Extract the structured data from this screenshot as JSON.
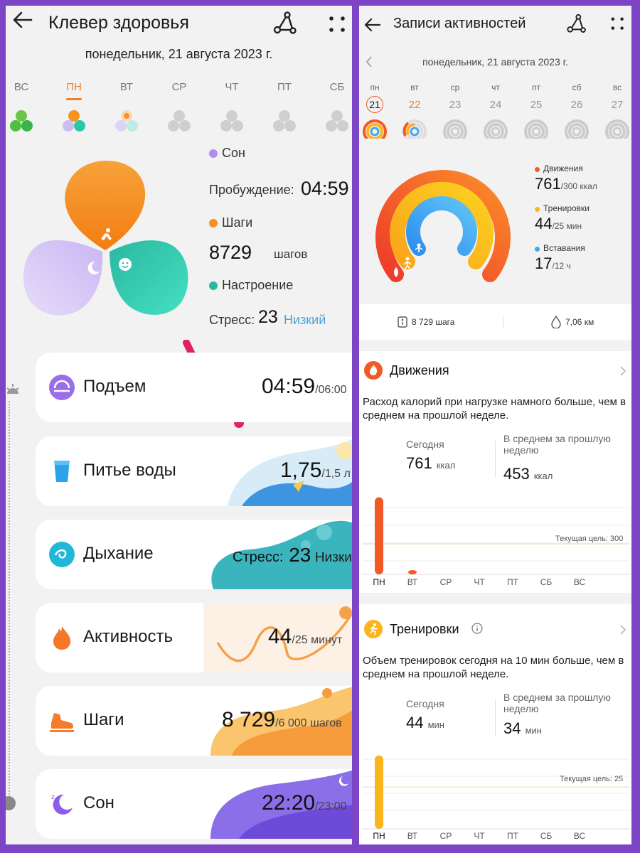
{
  "left": {
    "title": "Клевер здоровья",
    "date": "понедельник, 21 августа 2023 г.",
    "days": [
      "ВС",
      "ПН",
      "ВТ",
      "СР",
      "ЧТ",
      "ПТ",
      "СБ"
    ],
    "legend": {
      "sleep_label": "Сон",
      "wake_label": "Пробуждение:",
      "wake_value": "04:59",
      "steps_label": "Шаги",
      "steps_value": "8729",
      "steps_unit": "шагов",
      "mood_label": "Настроение",
      "stress_label": "Стресс:",
      "stress_value": "23",
      "stress_level": "Низкий"
    },
    "cards": [
      {
        "label": "Подъем",
        "value": "04:59",
        "unit": "/06:00",
        "icon": "sunrise-icon"
      },
      {
        "label": "Питье воды",
        "value": "1,75",
        "unit": "/1,5 л",
        "icon": "water-glass-icon"
      },
      {
        "label": "Дыхание",
        "prefix": "Стресс:",
        "value": "23",
        "unit": "Низкий",
        "icon": "breathing-icon"
      },
      {
        "label": "Активность",
        "value": "44",
        "unit": "/25 минут",
        "icon": "flame-icon"
      },
      {
        "label": "Шаги",
        "value": "8 729",
        "unit": "/6 000 шагов",
        "icon": "shoe-icon"
      },
      {
        "label": "Сон",
        "value": "22:20",
        "unit": "/23:00",
        "icon": "moon-icon"
      }
    ],
    "colors": {
      "orange": "#f6921e",
      "green": "#2bc7a8",
      "purple": "#cdbdf2",
      "accent": "#f08024",
      "link": "#4ba4d8"
    }
  },
  "right": {
    "title": "Записи активностей",
    "date": "понедельник, 21 августа 2023 г.",
    "weekdays": [
      "пн",
      "вт",
      "ср",
      "чт",
      "пт",
      "сб",
      "вс"
    ],
    "daynums": [
      "21",
      "22",
      "23",
      "24",
      "25",
      "26",
      "27"
    ],
    "rings": [
      {
        "label": "Движения",
        "value": "761",
        "goal": "/300 ккал",
        "color": "#f15a24"
      },
      {
        "label": "Тренировки",
        "value": "44",
        "goal": "/25 мин",
        "color": "#fbb41c"
      },
      {
        "label": "Вставания",
        "value": "17",
        "goal": "/12 ч",
        "color": "#3fa7f0"
      }
    ],
    "steps": "8 729 шага",
    "distance": "7,06 км",
    "moves": {
      "title": "Движения",
      "desc": "Расход калорий при нагрузке намного больше, чем в среднем на прошлой неделе.",
      "today_label": "Сегодня",
      "today_value": "761",
      "today_unit": "ккал",
      "avg_label": "В среднем за прошлую неделю",
      "avg_value": "453",
      "avg_unit": "ккал",
      "goal_label": "Текущая цель: 300"
    },
    "workouts": {
      "title": "Тренировки",
      "desc": "Объем тренировок сегодня на 10 мин больше, чем в среднем на прошлой неделе.",
      "today_label": "Сегодня",
      "today_value": "44",
      "today_unit": "мин",
      "avg_label": "В среднем за прошлую неделю",
      "avg_value": "34",
      "avg_unit": "мин",
      "goal_label": "Текущая цель: 25"
    },
    "axis_days": [
      "ПН",
      "ВТ",
      "СР",
      "ЧТ",
      "ПТ",
      "СБ",
      "ВС"
    ]
  },
  "chart_data": [
    {
      "type": "bar",
      "title": "Движения",
      "categories": [
        "ПН",
        "ВТ",
        "СР",
        "ЧТ",
        "ПТ",
        "СБ",
        "ВС"
      ],
      "values": [
        761,
        15,
        0,
        0,
        0,
        0,
        0
      ],
      "goal": 300,
      "ylim": [
        0,
        800
      ],
      "color": "#f15a24"
    },
    {
      "type": "bar",
      "title": "Тренировки",
      "categories": [
        "ПН",
        "ВТ",
        "СР",
        "ЧТ",
        "ПТ",
        "СБ",
        "ВС"
      ],
      "values": [
        44,
        0,
        0,
        0,
        0,
        0,
        0
      ],
      "goal": 25,
      "ylim": [
        0,
        46
      ],
      "color": "#fbb41c"
    }
  ]
}
